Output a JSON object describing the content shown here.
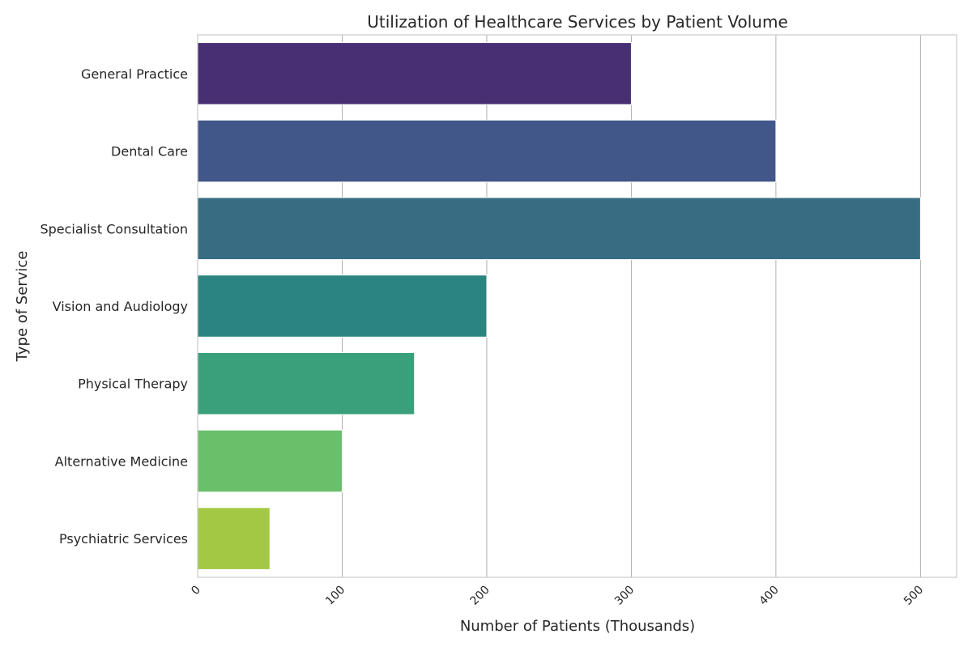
{
  "chart_data": {
    "type": "bar",
    "orientation": "horizontal",
    "title": "Utilization of Healthcare Services by Patient Volume",
    "xlabel": "Number of Patients (Thousands)",
    "ylabel": "Type of Service",
    "categories": [
      "General Practice",
      "Dental Care",
      "Specialist Consultation",
      "Vision and Audiology",
      "Physical Therapy",
      "Alternative Medicine",
      "Psychiatric Services"
    ],
    "values": [
      300,
      400,
      500,
      200,
      150,
      100,
      50
    ],
    "colors": [
      "#482f74",
      "#41578a",
      "#386c82",
      "#2b8480",
      "#3aa07b",
      "#6abf6a",
      "#a2c844"
    ],
    "xlim": [
      0,
      525
    ],
    "xticks": [
      0,
      100,
      200,
      300,
      400,
      500
    ],
    "xtick_labels": [
      "0",
      "100",
      "200",
      "300",
      "400",
      "500"
    ],
    "grid": "vertical",
    "style": {
      "grid_color": "#b0b0b0",
      "frame_color": "#cccccc",
      "bar_edge_color": "#ffffff"
    }
  }
}
